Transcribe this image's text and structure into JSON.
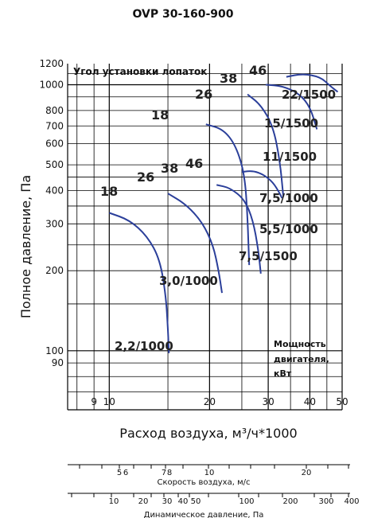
{
  "chart_data": {
    "type": "line",
    "title": "OVP 30-160-900",
    "xlabel": "Расход воздуха, м³/ч*1000",
    "ylabel": "Полное давление, Па",
    "xscale": "log",
    "yscale": "log",
    "xlim": [
      7.5,
      50
    ],
    "ylim": [
      60,
      1200
    ],
    "x_ticks": [
      "9",
      "10",
      "20",
      "30",
      "40",
      "50"
    ],
    "y_ticks": [
      "1200",
      "1000",
      "800",
      "700",
      "600",
      "500",
      "400",
      "300",
      "200",
      "100",
      "90"
    ],
    "grid": true,
    "blade_angle_header": "Угол установки лопаток",
    "blade_angle_labels": [
      "18",
      "26",
      "38",
      "46",
      "18",
      "26",
      "38",
      "46"
    ],
    "motor_power_note": [
      "Мощность",
      "двигателя,",
      "кВт"
    ],
    "series": [
      {
        "name": "2,2/1000",
        "x": [
          10.0,
          11.5,
          13.0,
          14.2,
          14.8,
          15.0,
          15.1
        ],
        "y": [
          330,
          310,
          270,
          220,
          160,
          120,
          98
        ]
      },
      {
        "name": "3,0/1000",
        "x": [
          15.0,
          17.0,
          19.0,
          20.5,
          21.3,
          21.8
        ],
        "y": [
          390,
          355,
          305,
          250,
          200,
          165
        ]
      },
      {
        "name": "5,5/1000",
        "x": [
          21.0,
          23.0,
          25.5,
          27.0,
          28.0,
          28.5
        ],
        "y": [
          420,
          410,
          370,
          310,
          240,
          195
        ]
      },
      {
        "name": "7,5/1000",
        "x": [
          25.0,
          27.0,
          29.0,
          31.0,
          32.5,
          33.0
        ],
        "y": [
          470,
          475,
          460,
          430,
          390,
          375
        ]
      },
      {
        "name": "7,5/1500",
        "x": [
          19.5,
          22.0,
          24.0,
          25.5,
          26.0,
          26.3
        ],
        "y": [
          710,
          680,
          590,
          460,
          320,
          210
        ]
      },
      {
        "name": "11/1500",
        "x": [
          26.0,
          28.5,
          31.0,
          32.5,
          33.3
        ],
        "y": [
          920,
          840,
          700,
          520,
          380
        ]
      },
      {
        "name": "15/1500",
        "x": [
          29.5,
          33.0,
          37.0,
          40.0,
          42.0
        ],
        "y": [
          1000,
          990,
          930,
          830,
          680
        ]
      },
      {
        "name": "22/1500",
        "x": [
          34.0,
          38.0,
          43.0,
          46.0,
          48.5
        ],
        "y": [
          1070,
          1100,
          1070,
          990,
          940
        ]
      }
    ],
    "secondary_axes": [
      {
        "label": "Скорость воздуха, м/с",
        "ticks": [
          "5",
          "6",
          "7",
          "8",
          "10",
          "20"
        ]
      },
      {
        "label": "Динамическое давление, Па",
        "ticks": [
          "10",
          "20",
          "30",
          "40",
          "50",
          "100",
          "200",
          "300",
          "400"
        ]
      }
    ]
  }
}
